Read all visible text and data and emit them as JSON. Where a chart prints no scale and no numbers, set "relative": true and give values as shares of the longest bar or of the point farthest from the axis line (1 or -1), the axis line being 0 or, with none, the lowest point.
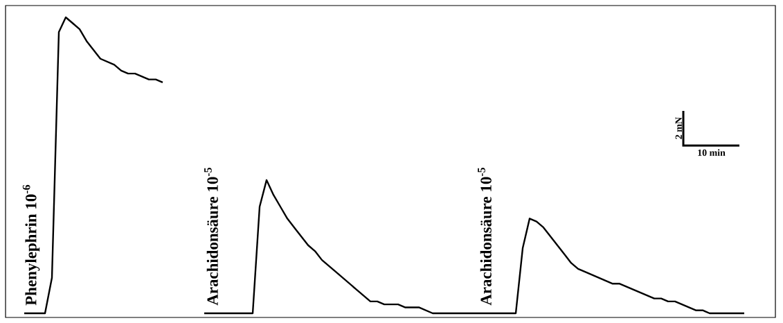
{
  "chart_data": {
    "type": "line",
    "relative": true,
    "categories": [
      null,
      null,
      null,
      null,
      null,
      null,
      null,
      null,
      null,
      null,
      null,
      null,
      null,
      null,
      null,
      null,
      null,
      null,
      null,
      null,
      null,
      null,
      null,
      null,
      null,
      null,
      null,
      null,
      null,
      null,
      null,
      null,
      null,
      null,
      null,
      null,
      null,
      null,
      null,
      null,
      null,
      null,
      null,
      null,
      null,
      null,
      null,
      null,
      null,
      null,
      null,
      null,
      null,
      null,
      null,
      null,
      null,
      null,
      null,
      null,
      null,
      null,
      null,
      null,
      null,
      null,
      null,
      null,
      null,
      null,
      null,
      null,
      null,
      null,
      null,
      null,
      null,
      null,
      null,
      null,
      null,
      null,
      null,
      null,
      null,
      null,
      null,
      null,
      null,
      null,
      null,
      null,
      null,
      null,
      null,
      null,
      null,
      null,
      null,
      null,
      null,
      null,
      null,
      null,
      null
    ],
    "series": [
      {
        "color": "#000000",
        "values": [
          0,
          0,
          0,
          0,
          0.12,
          0.95,
          1,
          0.98,
          0.96,
          0.92,
          0.89,
          0.86,
          0.85,
          0.84,
          0.82,
          0.81,
          0.81,
          0.8,
          0.79,
          0.79,
          0.78,
          null,
          null,
          null,
          null,
          null,
          null,
          null,
          null,
          null,
          null,
          null,
          null,
          null,
          null,
          null,
          null,
          null,
          null,
          null,
          null,
          null,
          null,
          null,
          null,
          null,
          null,
          null,
          null,
          null,
          null,
          null,
          null,
          null,
          null,
          null,
          null,
          null,
          null,
          null,
          null,
          null,
          null,
          null,
          null,
          null,
          null,
          null,
          null,
          null,
          null,
          null,
          null,
          null,
          null,
          null,
          null,
          null,
          null,
          null,
          null,
          null,
          null,
          null,
          null,
          null,
          null,
          null,
          null,
          null,
          null,
          null,
          null,
          null,
          null,
          null,
          null,
          null,
          null,
          null,
          null,
          null,
          null,
          null,
          null
        ]
      },
      {
        "color": "#000000",
        "values": [
          null,
          null,
          null,
          null,
          null,
          null,
          null,
          null,
          null,
          null,
          null,
          null,
          null,
          null,
          null,
          null,
          null,
          null,
          null,
          null,
          null,
          null,
          null,
          null,
          null,
          null,
          0,
          0,
          0,
          0,
          0,
          0,
          0,
          0,
          0.36,
          0.45,
          0.4,
          0.36,
          0.32,
          0.29,
          0.26,
          0.23,
          0.21,
          0.18,
          0.16,
          0.14,
          0.12,
          0.1,
          0.08,
          0.06,
          0.04,
          0.04,
          0.03,
          0.03,
          0.03,
          0.02,
          0.02,
          0.02,
          0.01,
          0,
          0,
          0,
          0,
          0,
          0,
          0,
          0,
          0,
          0,
          0,
          0,
          0,
          0.22,
          0.32,
          0.31,
          0.29,
          0.26,
          0.23,
          0.2,
          0.17,
          0.15,
          0.14,
          0.13,
          0.12,
          0.11,
          0.1,
          0.1,
          0.09,
          0.08,
          0.07,
          0.06,
          0.05,
          0.05,
          0.04,
          0.04,
          0.03,
          0.02,
          0.01,
          0.01,
          0,
          0,
          0,
          0,
          0,
          0
        ]
      }
    ],
    "annotations": [
      "Phenylephrin 10$^{-6}$",
      "Arachidonsäure 10$^{-5}$",
      "Arachidonsäure 10$^{-5}$",
      "2 mN",
      "10 min"
    ]
  }
}
